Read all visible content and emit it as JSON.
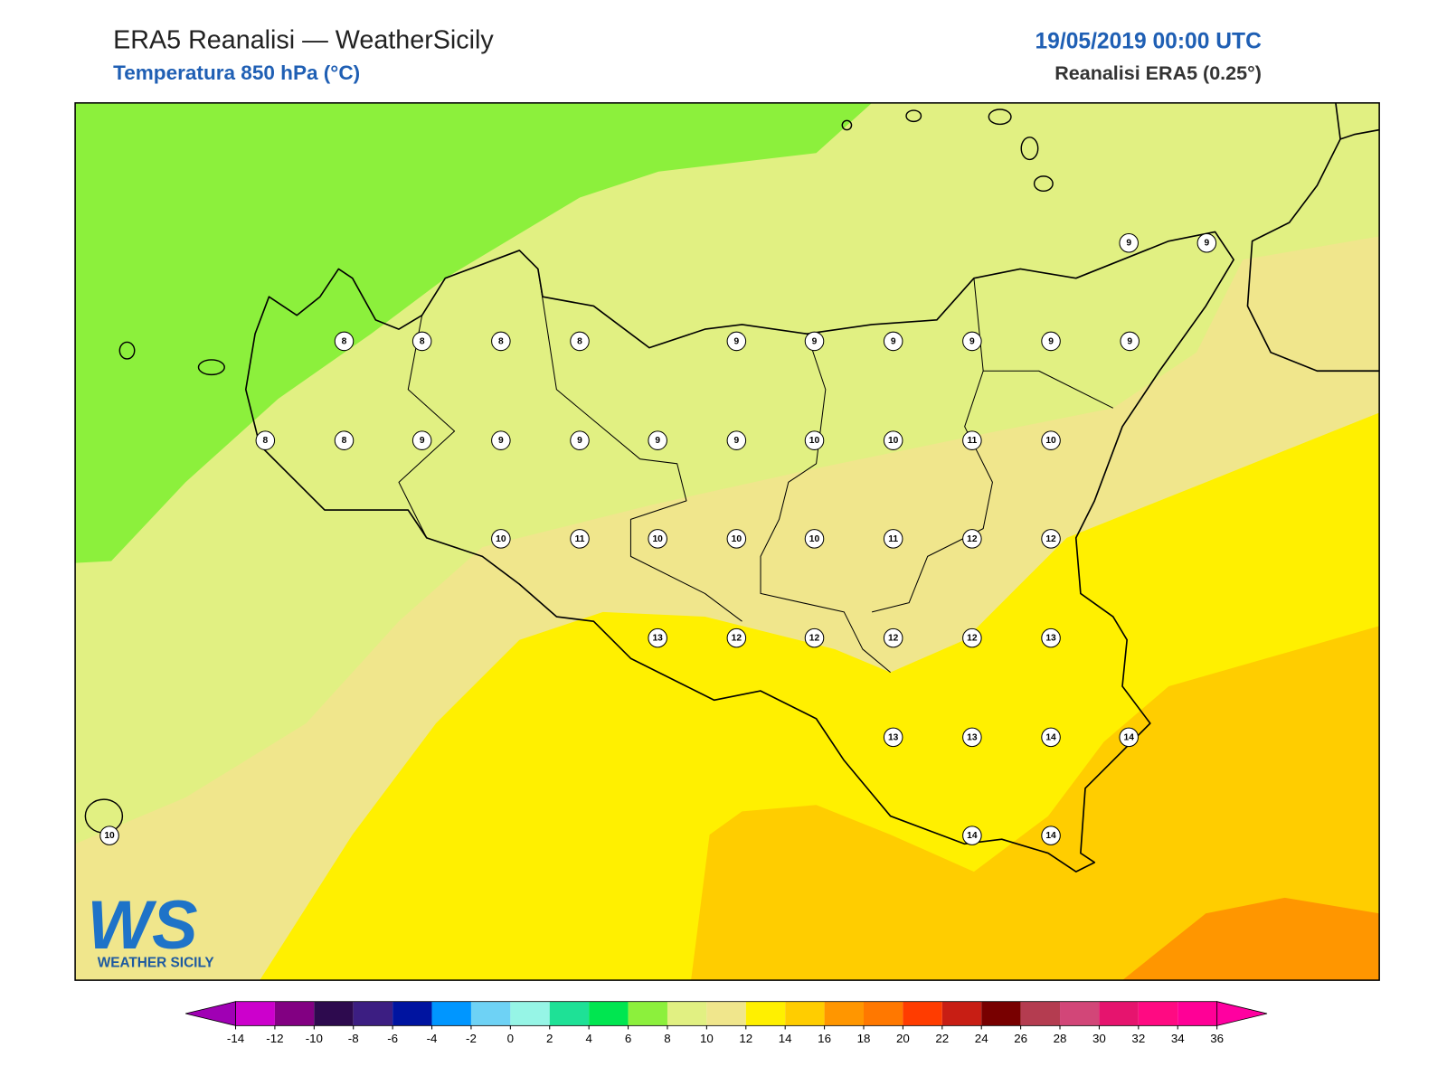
{
  "header": {
    "title": "ERA5 Reanalisi — WeatherSicily",
    "subtitle": "Temperatura 850 hPa (°C)",
    "date": "19/05/2019 00:00 UTC",
    "source": "Reanalisi ERA5 (0.25°)"
  },
  "stations": [
    9,
    9,
    8,
    8,
    8,
    8,
    9,
    9,
    9,
    9,
    9,
    9,
    8,
    8,
    9,
    9,
    9,
    9,
    9,
    10,
    10,
    11,
    10,
    10,
    11,
    10,
    10,
    10,
    11,
    12,
    12,
    13,
    12,
    12,
    12,
    12,
    13,
    13,
    13,
    14,
    14,
    14,
    14,
    10
  ],
  "colorbar": {
    "ticks": [
      -14,
      -12,
      -10,
      -8,
      -6,
      -4,
      -2,
      0,
      2,
      4,
      6,
      8,
      10,
      12,
      14,
      16,
      18,
      20,
      22,
      24,
      26,
      28,
      30,
      32,
      34,
      36
    ],
    "colors": [
      "#cc00cc",
      "#820082",
      "#2d0a4e",
      "#3c1e82",
      "#0014a0",
      "#0096ff",
      "#6ed2f5",
      "#96f5e6",
      "#1ee196",
      "#00e650",
      "#8cf03c",
      "#e1f082",
      "#f0e68c",
      "#fff000",
      "#ffcd00",
      "#ff9600",
      "#ff7800",
      "#ff3c00",
      "#c81e14",
      "#780000",
      "#b43c50",
      "#d24678",
      "#e6146e",
      "#ff0a82",
      "#ff0096"
    ],
    "under_color": "#a000b4",
    "over_color": "#ff00a0"
  },
  "logo": {
    "mark": "WS",
    "name": "WEATHER SICILY"
  }
}
